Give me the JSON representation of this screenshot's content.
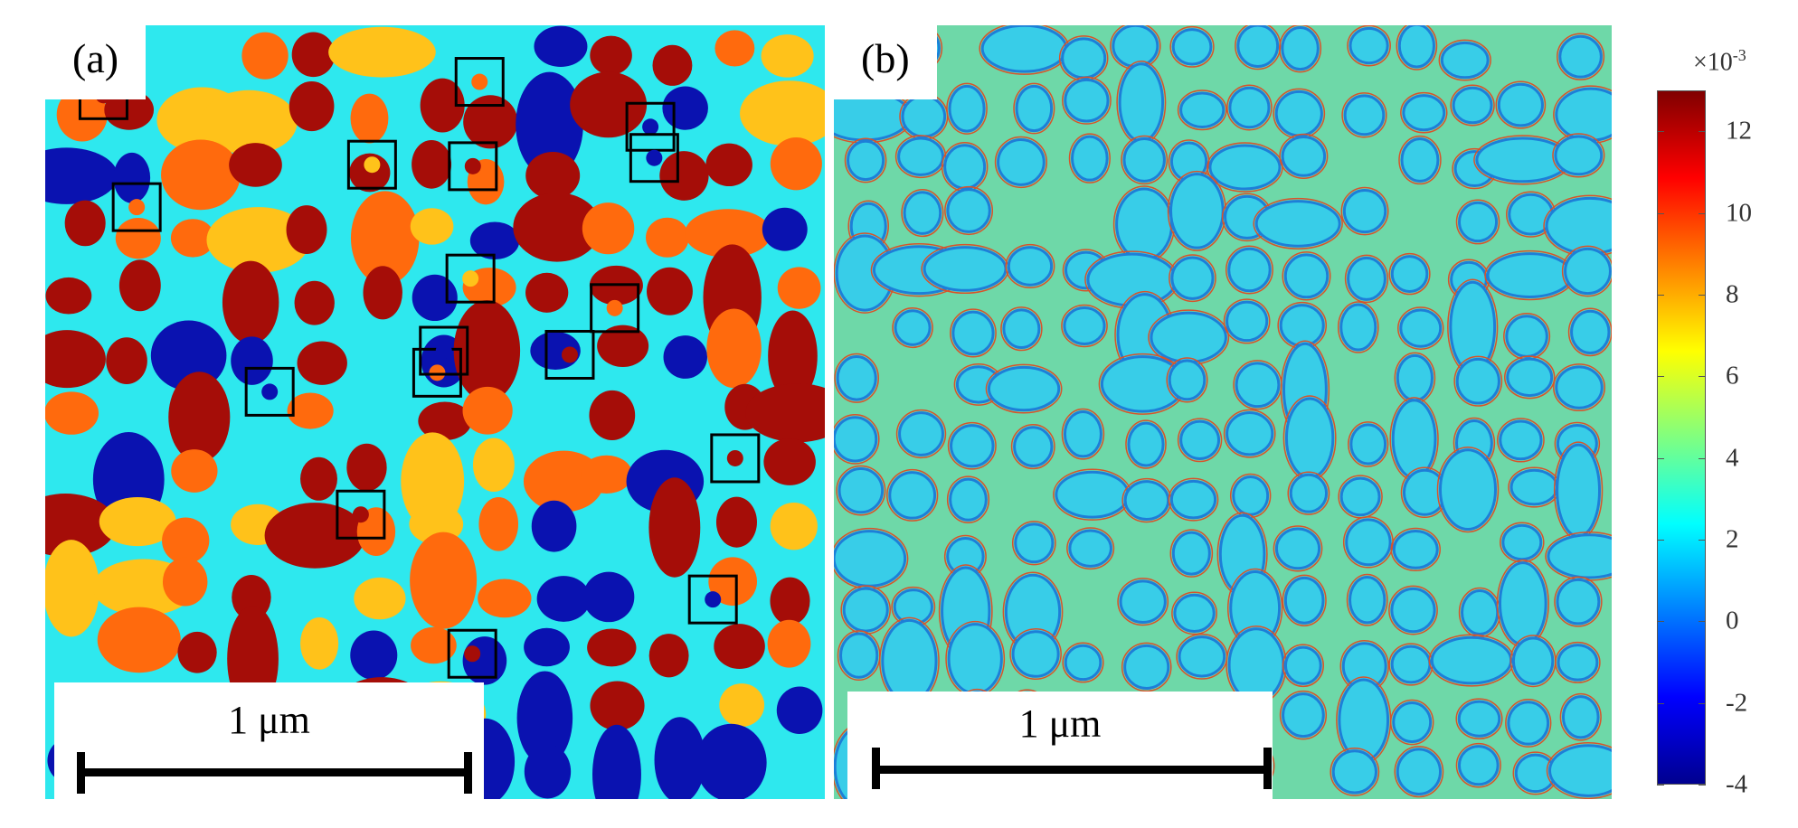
{
  "panels": {
    "a": {
      "label": "(a)",
      "scale_label": "1 μm",
      "marker_count": 17
    },
    "b": {
      "label": "(b)",
      "scale_label": "1 μm"
    }
  },
  "colorbar": {
    "multiplier_base": "×10",
    "multiplier_exp": "-3",
    "range": [
      -4,
      13
    ],
    "ticks": [
      "12",
      "10",
      "8",
      "6",
      "4",
      "2",
      "0",
      "-2",
      "-4"
    ],
    "tick_values": [
      12,
      10,
      8,
      6,
      4,
      2,
      0,
      -2,
      -4
    ],
    "colormap": "jet",
    "colors": [
      "#00008f",
      "#0000ff",
      "#0080ff",
      "#00ffff",
      "#80ff80",
      "#ffff00",
      "#ff8000",
      "#ff0000",
      "#800000"
    ]
  },
  "phase_colors": {
    "matrix_a": "#2ee8ee",
    "dark_red": "#a50d08",
    "orange": "#ff6a0d",
    "yellow": "#ffc21a",
    "blue": "#0a12b0",
    "matrix_b": "#6ed8a8",
    "particle_b": "#38cde8",
    "particle_b_edge": "#1d7fd8",
    "interface_b": "#d8532a"
  }
}
